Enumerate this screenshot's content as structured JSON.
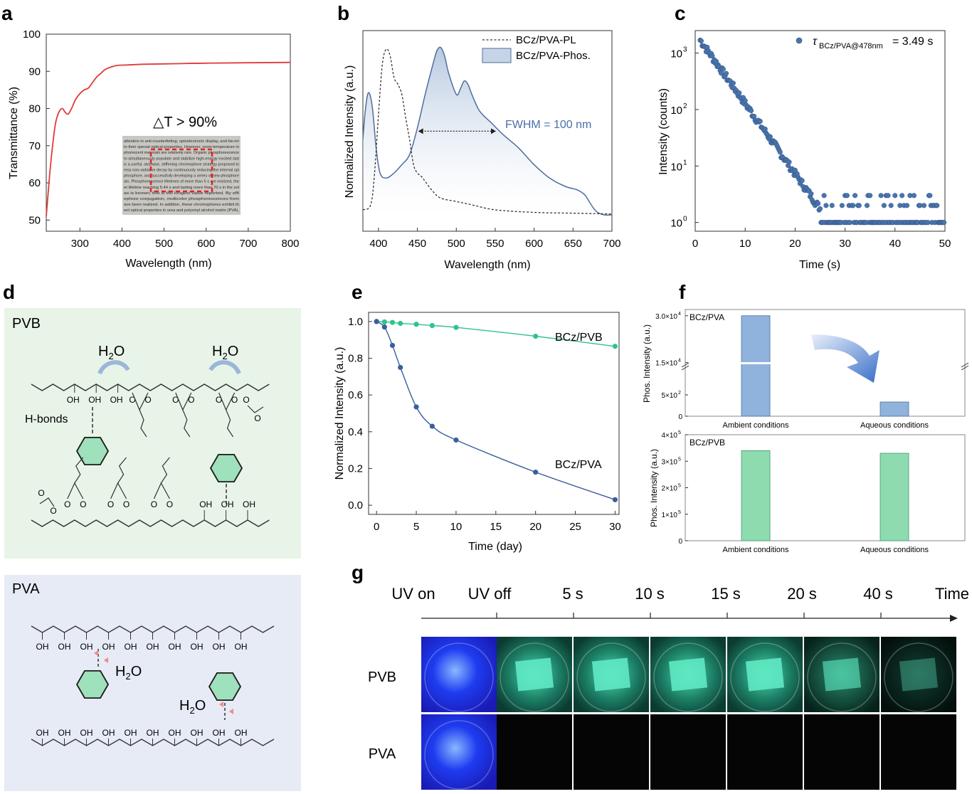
{
  "panels": {
    "a": {
      "letter": "a"
    },
    "b": {
      "letter": "b"
    },
    "c": {
      "letter": "c"
    },
    "d": {
      "letter": "d"
    },
    "e": {
      "letter": "e"
    },
    "f": {
      "letter": "f"
    },
    "g": {
      "letter": "g"
    }
  },
  "chart_data": [
    {
      "id": "a",
      "type": "line",
      "xlabel": "Wavelength (nm)",
      "ylabel": "Transmittance (%)",
      "xlim": [
        220,
        800
      ],
      "ylim": [
        47,
        100
      ],
      "xticks": [
        300,
        400,
        500,
        600,
        700,
        800
      ],
      "yticks": [
        50,
        60,
        70,
        80,
        90,
        100
      ],
      "annotation": "△T > 90%",
      "series": [
        {
          "color": "#e03a3a",
          "x": [
            220,
            228,
            235,
            242,
            250,
            258,
            265,
            272,
            280,
            290,
            300,
            310,
            320,
            330,
            340,
            350,
            360,
            375,
            390,
            410,
            450,
            500,
            600,
            700,
            800
          ],
          "y": [
            51,
            62,
            70,
            76,
            79,
            80,
            79,
            78.5,
            80,
            82.5,
            84,
            85,
            85.5,
            87,
            88.5,
            89.5,
            90.5,
            91.2,
            91.6,
            91.7,
            91.9,
            92,
            92.2,
            92.3,
            92.4
          ]
        }
      ]
    },
    {
      "id": "b",
      "type": "line",
      "xlabel": "Wavelength (nm)",
      "ylabel": "Normalized Intensity (a.u.)",
      "xlim": [
        380,
        700
      ],
      "ylim": [
        0,
        1.08
      ],
      "xticks": [
        400,
        450,
        500,
        550,
        600,
        650,
        700
      ],
      "annotation": "FWHM = 100 nm",
      "legend": [
        "BCz/PVA-PL",
        "BCz/PVA-Phos."
      ],
      "series": [
        {
          "name": "BCz/PVA-PL",
          "style": "dashed",
          "x": [
            380,
            390,
            395,
            400,
            405,
            410,
            415,
            420,
            425,
            430,
            435,
            440,
            445,
            450,
            455,
            460,
            470,
            480,
            500,
            520,
            550,
            600,
            650,
            700
          ],
          "y": [
            0.03,
            0.06,
            0.25,
            0.6,
            0.9,
            0.99,
            0.95,
            0.82,
            0.78,
            0.72,
            0.58,
            0.45,
            0.3,
            0.25,
            0.23,
            0.2,
            0.14,
            0.1,
            0.08,
            0.06,
            0.03,
            0.015,
            0.01,
            0.005
          ]
        },
        {
          "name": "BCz/PVA-Phos.",
          "style": "filled",
          "x": [
            380,
            383,
            387,
            392,
            397,
            402,
            410,
            420,
            430,
            440,
            450,
            460,
            470,
            475,
            480,
            485,
            490,
            500,
            505,
            510,
            515,
            520,
            530,
            545,
            560,
            580,
            600,
            620,
            640,
            655,
            665,
            672,
            680,
            690,
            700
          ],
          "y": [
            0.45,
            0.62,
            0.73,
            0.65,
            0.4,
            0.25,
            0.22,
            0.25,
            0.3,
            0.36,
            0.52,
            0.72,
            0.9,
            0.98,
            1.0,
            0.95,
            0.85,
            0.72,
            0.75,
            0.8,
            0.78,
            0.72,
            0.62,
            0.55,
            0.48,
            0.4,
            0.3,
            0.22,
            0.17,
            0.15,
            0.12,
            0.07,
            0.02,
            0.0,
            0.0
          ]
        }
      ],
      "fwhm_arrow": [
        451,
        551
      ]
    },
    {
      "id": "c",
      "type": "scatter",
      "xlabel": "Time (s)",
      "ylabel": "Intensity (counts)",
      "xlim": [
        0,
        50
      ],
      "xticks": [
        0,
        10,
        20,
        30,
        40,
        50
      ],
      "yscale": "log",
      "ylim": [
        0.7,
        2500
      ],
      "yticks": [
        1,
        10,
        100,
        1000
      ],
      "ytick_labels": [
        "10",
        "10",
        "10",
        "10"
      ],
      "ytick_exponents": [
        "0",
        "1",
        "2",
        "3"
      ],
      "legend_symbol": "τ",
      "legend_sub": "BCz/PVA@478nm",
      "legend_value": " = 3.49 s",
      "decay": {
        "A": 1700,
        "tau": 3.49,
        "t_start": 1,
        "t_end": 50
      }
    },
    {
      "id": "e",
      "type": "line",
      "xlabel": "Time (day)",
      "ylabel": "Normalized Intensity (a.u.)",
      "xlim": [
        -1,
        30.5
      ],
      "ylim": [
        -0.05,
        1.05
      ],
      "xticks": [
        0,
        5,
        10,
        15,
        20,
        25,
        30
      ],
      "yticks": [
        0.0,
        0.2,
        0.4,
        0.6,
        0.8,
        1.0
      ],
      "series": [
        {
          "name": "BCz/PVB",
          "color": "#2fc48a",
          "x": [
            0,
            1,
            2,
            3,
            5,
            7,
            10,
            20,
            30
          ],
          "y": [
            1.0,
            0.998,
            0.995,
            0.99,
            0.985,
            0.978,
            0.968,
            0.92,
            0.865
          ]
        },
        {
          "name": "BCz/PVA",
          "color": "#3a5f9e",
          "x": [
            0,
            1,
            2,
            3,
            5,
            7,
            10,
            20,
            30
          ],
          "y": [
            1.0,
            0.97,
            0.87,
            0.75,
            0.535,
            0.43,
            0.355,
            0.18,
            0.03
          ]
        }
      ]
    },
    {
      "id": "f1",
      "type": "bar",
      "title": "BCz/PVA",
      "ylabel": "Phos. Intensity (a.u.)",
      "categories": [
        "Ambient conditions",
        "Aqueous conditions"
      ],
      "values": [
        30000,
        300
      ],
      "color": "#8fb3dc",
      "broken_axis": true,
      "yticks_upper": [
        15000,
        30000
      ],
      "yticks_upper_labels": [
        "1.5×10",
        "3.0×10"
      ],
      "yticks_upper_exp": [
        "4",
        "4"
      ],
      "yticks_lower": [
        0,
        500
      ],
      "yticks_lower_labels": [
        "0",
        "5×10"
      ],
      "yticks_lower_exp": [
        "",
        "2"
      ]
    },
    {
      "id": "f2",
      "type": "bar",
      "title": "BCz/PVB",
      "ylabel": "Phos. Intensity (a.u.)",
      "categories": [
        "Ambient conditions",
        "Aqueous conditions"
      ],
      "values": [
        340000,
        330000
      ],
      "color": "#8edbb0",
      "ylim": [
        0,
        400000
      ],
      "yticks": [
        0,
        100000,
        200000,
        300000,
        400000
      ],
      "ytick_labels": [
        "0",
        "1×10",
        "2×10",
        "3×10",
        "4×10"
      ],
      "ytick_exp": [
        "",
        "5",
        "5",
        "5",
        "5"
      ]
    }
  ],
  "panel_d": {
    "pvb_label": "PVB",
    "pva_label": "PVA",
    "h2o": "H",
    "h2o_sub": "2",
    "h2o_o": "O",
    "oh": "OH",
    "o": "O",
    "hbonds": "H-bonds"
  },
  "panel_a_inset": {
    "lines": [
      "attention in anti-counterfeiting, optoelectronic display, and bio-im",
      "to their special optical properties. However, room-temperature lo",
      "phorescent materials are relatively rare. Organic phosphorescence",
      "to simultaneously populate and stabilize high-energy excited stat",
      "is a useful, stepwise, stiffening chromophore strategy proposed to",
      "ress non-radiative decay by continuously reducing the internal spi",
      "phosphore, and successfully developing a series of new phosphore",
      "als. Phosphorescence lifetimes of more than 5 s are realized, the",
      "et lifetime reaching 5.44 s and lasting more than 70 s in the sol",
      "as is known, this is the longest value reported. By effi",
      "ephore conjugation, multicolor phosphorescences from",
      "ave been realized. In addition, these chromophores exhibit th",
      "ent optical properties in urea and polyvinyl alcohol matrix (PVA),"
    ]
  },
  "panel_g": {
    "timeline": [
      "UV on",
      "UV off",
      "5 s",
      "10 s",
      "15 s",
      "20 s",
      "40 s"
    ],
    "time_label": "Time",
    "rows": [
      "PVB",
      "PVA"
    ]
  }
}
